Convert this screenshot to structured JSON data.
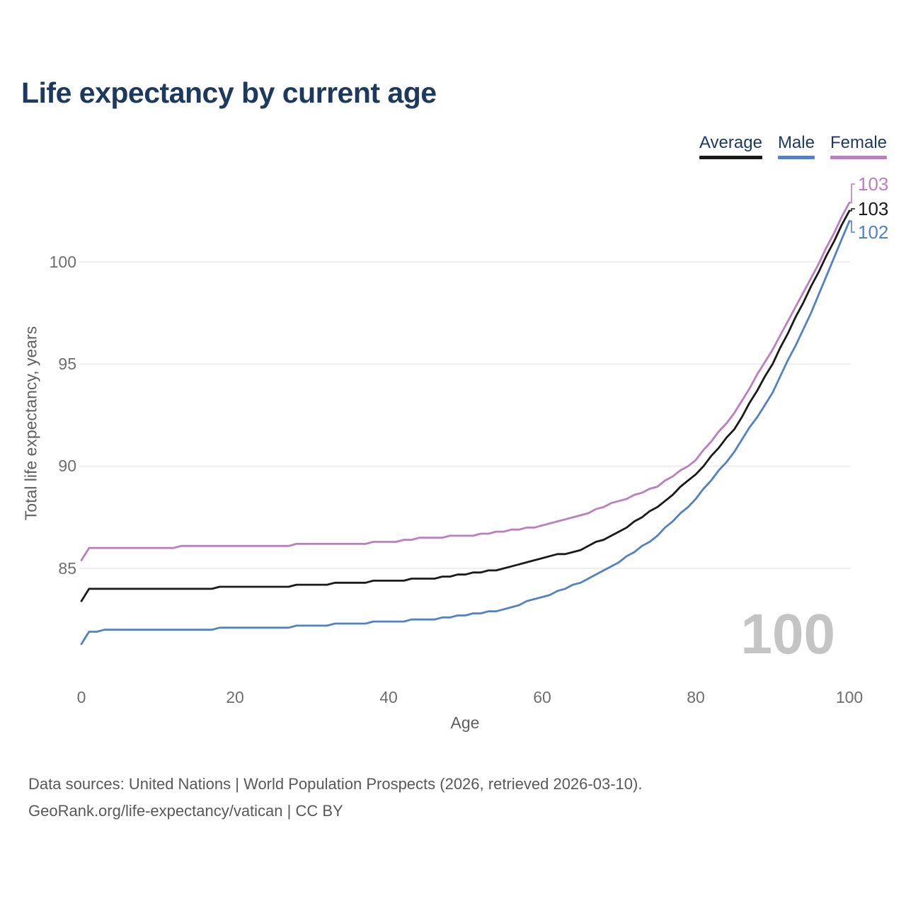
{
  "title": "Life expectancy by current age",
  "chart_data": {
    "type": "line",
    "title": "Life expectancy by current age",
    "xlabel": "Age",
    "ylabel": "Total life expectancy, years",
    "xlim": [
      0,
      100
    ],
    "ylim_drawn": [
      81,
      103.5
    ],
    "xticks": [
      0,
      20,
      40,
      60,
      80,
      100
    ],
    "yticks": [
      85,
      90,
      95,
      100
    ],
    "grid": "horizontal-only",
    "legend_position": "top-right",
    "x": [
      0,
      1,
      5,
      10,
      15,
      20,
      25,
      30,
      35,
      40,
      45,
      50,
      55,
      60,
      65,
      70,
      75,
      80,
      85,
      90,
      95,
      100
    ],
    "series": [
      {
        "name": "Average",
        "color": "#1a1a1a",
        "end_label": "103",
        "values": [
          83.4,
          84.0,
          84.0,
          84.0,
          84.0,
          84.1,
          84.1,
          84.2,
          84.3,
          84.4,
          84.5,
          84.7,
          85.0,
          85.5,
          85.9,
          86.8,
          88.0,
          89.6,
          91.8,
          95.0,
          98.8,
          102.5
        ]
      },
      {
        "name": "Male",
        "color": "#5182c8",
        "end_label": "102",
        "values": [
          81.3,
          81.9,
          82.0,
          82.0,
          82.0,
          82.1,
          82.1,
          82.2,
          82.3,
          82.4,
          82.5,
          82.7,
          83.0,
          83.6,
          84.3,
          85.3,
          86.6,
          88.4,
          90.7,
          93.6,
          97.5,
          102.0
        ]
      },
      {
        "name": "Female",
        "color": "#bd7ec1",
        "end_label": "103",
        "values": [
          85.4,
          86.0,
          86.0,
          86.0,
          86.1,
          86.1,
          86.1,
          86.2,
          86.2,
          86.3,
          86.5,
          86.6,
          86.8,
          87.1,
          87.6,
          88.3,
          89.0,
          90.3,
          92.6,
          95.7,
          99.2,
          102.9
        ]
      }
    ],
    "watermark_age": "100"
  },
  "footer": {
    "line1": "Data sources: United Nations | World Population Prospects (2026, retrieved 2026-03-10).",
    "line2": "GeoRank.org/life-expectancy/vatican | CC BY"
  }
}
